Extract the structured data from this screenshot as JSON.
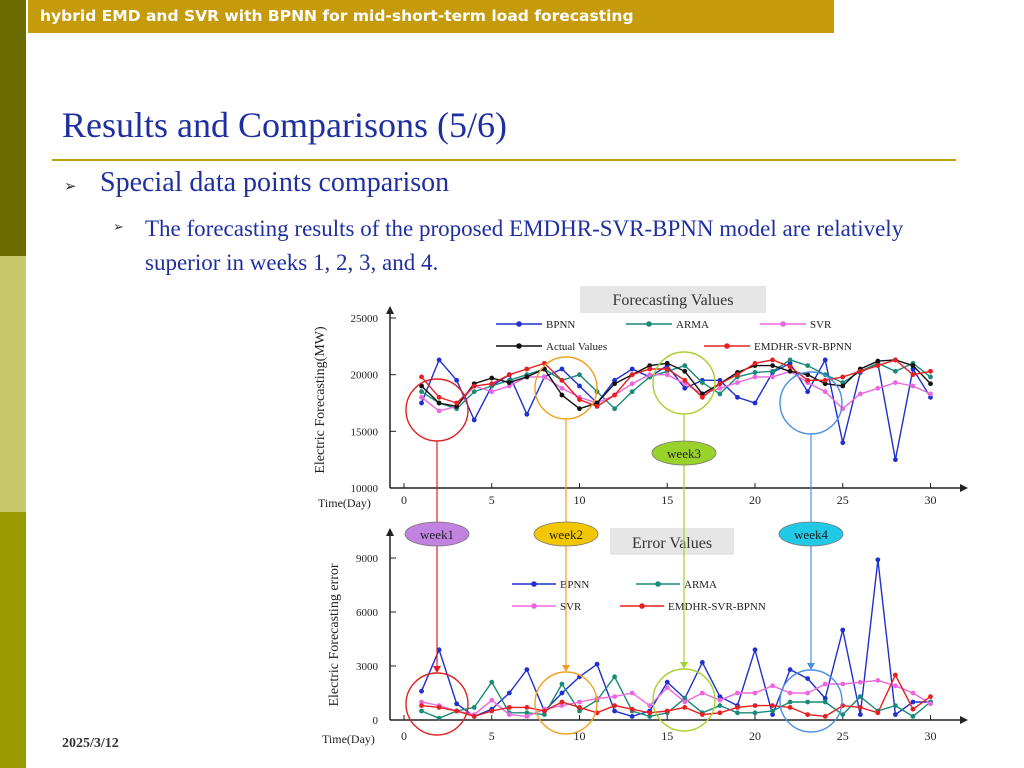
{
  "header": {
    "banner": "hybrid EMD and SVR with BPNN for mid-short-term load forecasting"
  },
  "slide": {
    "title": "Results and Comparisons (5/6)",
    "bullet1": "Special data points comparison",
    "bullet2": "The forecasting results of the proposed EMDHR-SVR-BPNN model are relatively superior in weeks 1, 2, 3, and 4.",
    "date": "2025/3/12"
  },
  "colors": {
    "banner": "#c59b0b",
    "title": "#1f2fa0",
    "rule": "#b9a40d",
    "sidebar_dark": "#6b6b00",
    "sidebar_light": "#c8c86a"
  },
  "chart_data": [
    {
      "type": "line",
      "title": "Forecasting Values",
      "xlabel": "Time(Day)",
      "ylabel": "Electric Forecasting(MW)",
      "xlim": [
        0,
        31
      ],
      "ylim": [
        10000,
        25000
      ],
      "xticks": [
        0,
        5,
        10,
        15,
        20,
        25,
        30
      ],
      "yticks": [
        10000,
        15000,
        20000,
        25000
      ],
      "x": [
        1,
        2,
        3,
        4,
        5,
        6,
        7,
        8,
        9,
        10,
        11,
        12,
        13,
        14,
        15,
        16,
        17,
        18,
        19,
        20,
        21,
        22,
        23,
        24,
        25,
        26,
        27,
        28,
        29,
        30
      ],
      "series": [
        {
          "name": "BPNN",
          "color": "#1f2fd0",
          "values": [
            17500,
            21300,
            19500,
            16000,
            19000,
            20000,
            16500,
            19800,
            20500,
            19000,
            17500,
            19500,
            20500,
            19800,
            20800,
            18800,
            19500,
            19500,
            18000,
            17500,
            20200,
            21000,
            18500,
            21300,
            14000,
            20200,
            21000,
            12500,
            20500,
            18000
          ]
        },
        {
          "name": "ARMA",
          "color": "#1a8a78",
          "values": [
            18500,
            17500,
            17000,
            18500,
            19000,
            19500,
            20000,
            20500,
            19500,
            20000,
            18500,
            17000,
            18500,
            19800,
            20300,
            20800,
            19300,
            18300,
            19800,
            20200,
            20300,
            21300,
            20800,
            20000,
            19300,
            20300,
            21000,
            20300,
            21000,
            19800
          ]
        },
        {
          "name": "SVR",
          "color": "#ee66dd",
          "values": [
            18000,
            16800,
            17200,
            19000,
            18500,
            19000,
            19800,
            19800,
            18800,
            18000,
            17500,
            18200,
            19200,
            20000,
            20000,
            19200,
            18300,
            18800,
            19300,
            19800,
            19800,
            20300,
            19300,
            18500,
            17000,
            18300,
            18800,
            19300,
            19000,
            18300
          ]
        },
        {
          "name": "Actual Values",
          "color": "#111111",
          "values": [
            19000,
            17500,
            17200,
            19200,
            19700,
            19300,
            19800,
            20500,
            18200,
            17000,
            17500,
            19200,
            20000,
            20800,
            21000,
            20300,
            18300,
            19200,
            20200,
            20800,
            20800,
            20300,
            20000,
            19200,
            19000,
            20500,
            21200,
            21300,
            20800,
            19200
          ]
        },
        {
          "name": "EMDHR-SVR-BPNN",
          "color": "#e62020",
          "values": [
            19800,
            18000,
            17500,
            19000,
            19200,
            20000,
            20500,
            21000,
            19500,
            17800,
            17200,
            18200,
            20000,
            20500,
            20500,
            19500,
            18000,
            19200,
            20000,
            21000,
            21300,
            20700,
            19500,
            19500,
            19800,
            20300,
            20800,
            21300,
            20000,
            20300
          ]
        }
      ],
      "annotations": [
        "week3"
      ]
    },
    {
      "type": "line",
      "title": "Error Values",
      "xlabel": "Time(Day)",
      "ylabel": "Electric Forecasting error",
      "xlim": [
        0,
        31
      ],
      "ylim": [
        0,
        10000
      ],
      "xticks": [
        0,
        5,
        10,
        15,
        20,
        25,
        30
      ],
      "yticks": [
        0,
        3000,
        6000,
        9000
      ],
      "x": [
        1,
        2,
        3,
        4,
        5,
        6,
        7,
        8,
        9,
        10,
        11,
        12,
        13,
        14,
        15,
        16,
        17,
        18,
        19,
        20,
        21,
        22,
        23,
        24,
        25,
        26,
        27,
        28,
        29,
        30
      ],
      "series": [
        {
          "name": "BPNN",
          "color": "#1f2fd0",
          "values": [
            1600,
            3900,
            900,
            200,
            600,
            1500,
            2800,
            500,
            1500,
            2400,
            3100,
            500,
            200,
            500,
            2100,
            1200,
            3200,
            1300,
            800,
            3900,
            300,
            2800,
            2300,
            1200,
            5000,
            300,
            8900,
            300,
            1000,
            1000
          ]
        },
        {
          "name": "ARMA",
          "color": "#1a8a78",
          "values": [
            500,
            100,
            500,
            700,
            2100,
            400,
            400,
            300,
            2000,
            500,
            1100,
            2400,
            500,
            200,
            400,
            1200,
            400,
            800,
            400,
            400,
            500,
            1000,
            1000,
            1000,
            300,
            1300,
            500,
            800,
            200,
            1000
          ]
        },
        {
          "name": "SVR",
          "color": "#ee66dd",
          "values": [
            1000,
            800,
            500,
            300,
            1100,
            300,
            200,
            600,
            800,
            1000,
            1200,
            1300,
            1500,
            800,
            1800,
            1000,
            1500,
            1100,
            1500,
            1500,
            1900,
            1500,
            1500,
            2000,
            2000,
            2100,
            2200,
            1900,
            1500,
            900
          ]
        },
        {
          "name": "EMDHR-SVR-BPNN",
          "color": "#e62020",
          "values": [
            800,
            700,
            500,
            200,
            500,
            700,
            700,
            500,
            1000,
            700,
            400,
            800,
            600,
            400,
            500,
            700,
            300,
            400,
            700,
            800,
            800,
            700,
            300,
            200,
            800,
            700,
            400,
            2500,
            600,
            1300
          ]
        }
      ],
      "annotations": [
        "week1",
        "week2",
        "week4"
      ]
    }
  ]
}
